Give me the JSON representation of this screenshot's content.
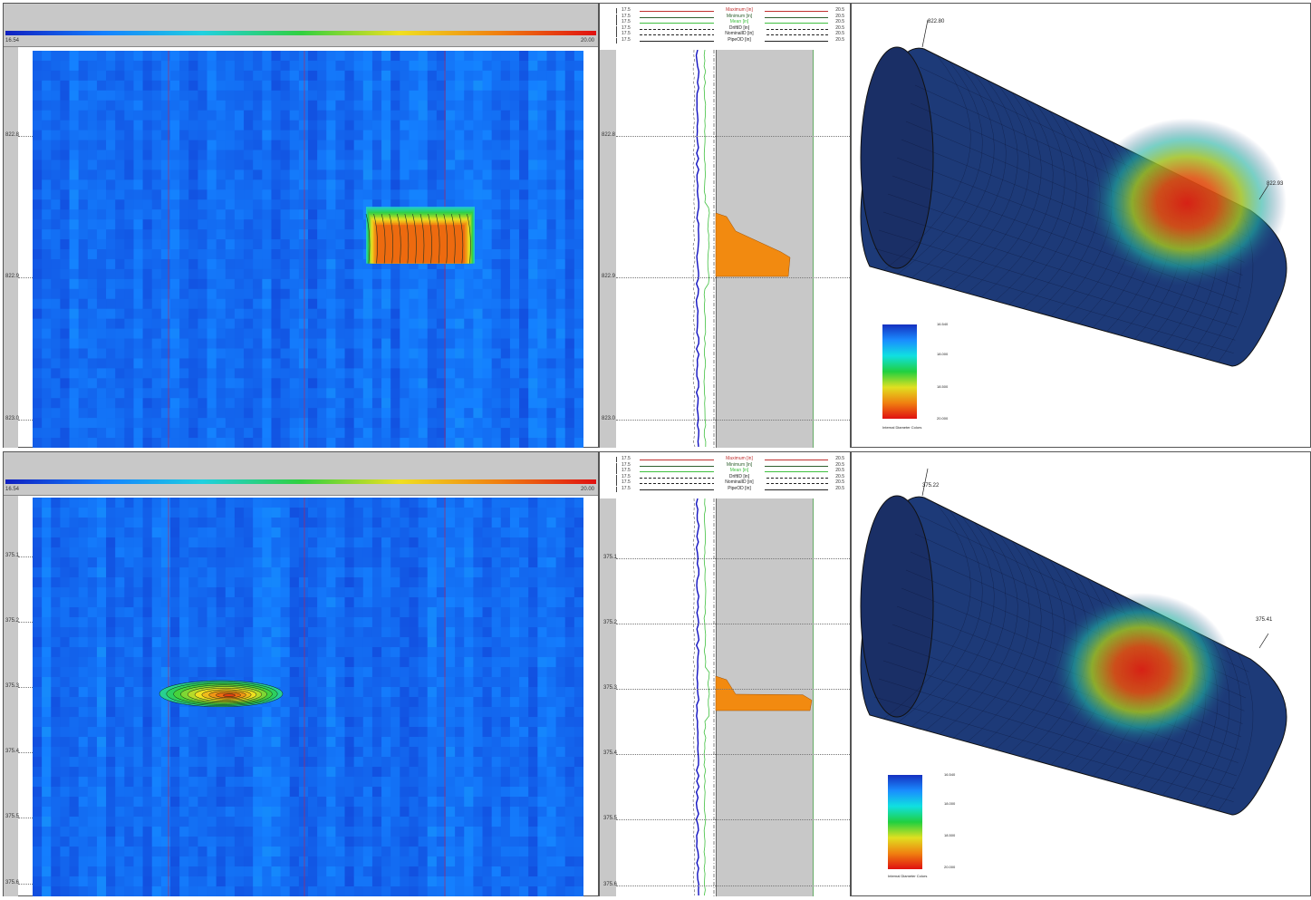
{
  "panels": [
    {
      "id": "top",
      "colorbar": {
        "min_label": "16.54",
        "max_label": "20.00"
      },
      "depth_ticks": [
        "822.8",
        "822.9",
        "823.0"
      ],
      "legend": [
        {
          "min": "17.5",
          "name": "Maximum [in]",
          "max": "20.5",
          "color": "#c03030",
          "style": "solid"
        },
        {
          "min": "17.5",
          "name": "Minimum [in]",
          "max": "20.5",
          "color": "#306030",
          "style": "solid"
        },
        {
          "min": "17.5",
          "name": "Mean [in]",
          "max": "20.5",
          "color": "#40c040",
          "style": "solid"
        },
        {
          "min": "17.5",
          "name": "DriftID [in]",
          "max": "20.5",
          "color": "#222222",
          "style": "dashed"
        },
        {
          "min": "17.5",
          "name": "NominalID [in]",
          "max": "20.5",
          "color": "#222222",
          "style": "dashdot"
        },
        {
          "min": "17.5",
          "name": "PipeOD [in]",
          "max": "20.5",
          "color": "#222222",
          "style": "solid"
        }
      ],
      "pipe_start_label": "822.80",
      "pipe_end_label": "822.93",
      "cbar3d_labels": [
        "16.540",
        "18.000",
        "18.500",
        "20.000"
      ],
      "cbar3d_title": "Internal Diameter Colors"
    },
    {
      "id": "bottom",
      "colorbar": {
        "min_label": "16.54",
        "max_label": "20.00"
      },
      "depth_ticks": [
        "375.1",
        "375.2",
        "375.3",
        "375.4",
        "375.5",
        "375.6"
      ],
      "legend": [
        {
          "min": "17.5",
          "name": "Maximum [in]",
          "max": "20.5",
          "color": "#c03030",
          "style": "solid"
        },
        {
          "min": "17.5",
          "name": "Minimum [in]",
          "max": "20.5",
          "color": "#306030",
          "style": "solid"
        },
        {
          "min": "17.5",
          "name": "Mean [in]",
          "max": "20.5",
          "color": "#40c040",
          "style": "solid"
        },
        {
          "min": "17.5",
          "name": "DriftID [in]",
          "max": "20.5",
          "color": "#222222",
          "style": "dashed"
        },
        {
          "min": "17.5",
          "name": "NominalID [in]",
          "max": "20.5",
          "color": "#222222",
          "style": "dashdot"
        },
        {
          "min": "17.5",
          "name": "PipeOD [in]",
          "max": "20.5",
          "color": "#222222",
          "style": "solid"
        }
      ],
      "pipe_start_label": "375.22",
      "pipe_end_label": "375.41",
      "cbar3d_labels": [
        "16.540",
        "18.000",
        "18.500",
        "20.000"
      ],
      "cbar3d_title": "Internal Diameter Colors"
    }
  ],
  "chart_data": [
    {
      "type": "heatmap",
      "title": "",
      "colorbar_range": [
        16.54,
        20.0
      ],
      "y_ticks": [
        822.8,
        822.9,
        823.0
      ],
      "ylim": [
        822.74,
        823.02
      ],
      "anomaly": {
        "depth_top": 822.85,
        "depth_bottom": 822.89,
        "max_value": 20.0
      }
    },
    {
      "type": "heatmap",
      "title": "",
      "colorbar_range": [
        16.54,
        20.0
      ],
      "y_ticks": [
        375.1,
        375.2,
        375.3,
        375.4,
        375.5,
        375.6
      ],
      "ylim": [
        375.01,
        375.62
      ],
      "anomaly": {
        "depth_top": 375.29,
        "depth_bottom": 375.33,
        "max_value": 20.0
      }
    }
  ]
}
